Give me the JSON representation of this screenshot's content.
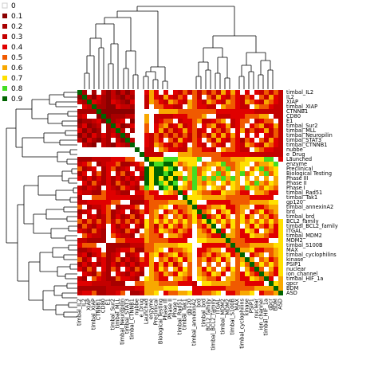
{
  "chart_data": {
    "type": "heatmap",
    "title": "",
    "xlabel": "",
    "ylabel": "",
    "row_labels": [
      "timbal_IL2",
      "IL2",
      "XIAP",
      "timbal_XIAP",
      "CTNNB1",
      "CD80",
      "E1",
      "timbal_Sur2",
      "timbal_MLL",
      "timbal_Neuropilin",
      "timbal_STAT3",
      "timbal_CTNNB1",
      "nubbe",
      "e_Drug",
      "Launched",
      "enzyme",
      "Preclinical",
      "Biological Testing",
      "Phase III",
      "Phase II",
      "Phase I",
      "timbal_Rad51",
      "timbal_Tak1",
      "gp120",
      "timbal_annexinA2",
      "brd",
      "timbal_brd",
      "BCL2_family",
      "timbal_BCL2_family",
      "ITGAL",
      "timbal_MDM2",
      "MDM2",
      "timbal_S100B",
      "MAX",
      "timbal_cyclophilins",
      "kinase",
      "PSIP1",
      "nuclear",
      "ion_channel",
      "timbal_HIF_1a",
      "gpcr",
      "BDM",
      "ASD"
    ],
    "col_labels": [
      "timbal_IL2",
      "IL2",
      "XIAP",
      "timbal_XIAP",
      "CTNNB1",
      "CD80",
      "E1",
      "timbal_Sur2",
      "timbal_MLL",
      "timbal_Neuropilin",
      "timbal_STAT3",
      "timbal_CTNNB1",
      "nubbe",
      "e_Drug",
      "Launched",
      "enzyme",
      "Preclinical",
      "Biological Testing",
      "Phase III",
      "Phase II",
      "Phase I",
      "timbal_Rad51",
      "timbal_Tak1",
      "gp120",
      "timbal_annexinA2",
      "brd",
      "timbal_brd",
      "BCL2_family",
      "timbal_BCL2_family",
      "ITGAL",
      "timbal_MDM2",
      "MDM2",
      "timbal_S100B",
      "MAX",
      "timbal_cyclophilins",
      "kinase",
      "PSIP1",
      "nuclear",
      "ion_channel",
      "timbal_HIF_1a",
      "gpcr",
      "BDM",
      "ASD"
    ],
    "legend": {
      "levels": [
        {
          "label": "0",
          "color": "#ffffff"
        },
        {
          "label": "0.1",
          "color": "#8b0000"
        },
        {
          "label": "0.2",
          "color": "#a80000"
        },
        {
          "label": "0.3",
          "color": "#c40000"
        },
        {
          "label": "0.4",
          "color": "#e00000"
        },
        {
          "label": "0.5",
          "color": "#f05a00"
        },
        {
          "label": "0.6",
          "color": "#f8a800"
        },
        {
          "label": "0.7",
          "color": "#ffe000"
        },
        {
          "label": "0.8",
          "color": "#44dd22"
        },
        {
          "label": "0.9",
          "color": "#006400"
        }
      ]
    },
    "blocks": [
      {
        "rows": [
          14,
          20
        ],
        "cols": [
          14,
          20
        ],
        "value": 0.8
      },
      {
        "rows": [
          21,
          42
        ],
        "cols": [
          21,
          42
        ],
        "value": 0.5
      },
      {
        "rows": [
          0,
          11
        ],
        "cols": [
          0,
          11
        ],
        "value": 0.2
      },
      {
        "rows": [
          14,
          20
        ],
        "cols": [
          21,
          42
        ],
        "value": 0.6
      },
      {
        "rows": [
          21,
          42
        ],
        "cols": [
          14,
          20
        ],
        "value": 0.5
      },
      {
        "rows": [
          0,
          13
        ],
        "cols": [
          14,
          42
        ],
        "value": 0.4
      },
      {
        "rows": [
          14,
          42
        ],
        "cols": [
          0,
          13
        ],
        "value": 0.3
      }
    ],
    "diagonal_value": 0.9,
    "grid": false,
    "legend_position": "top-left",
    "dendrograms": [
      "top",
      "left"
    ]
  }
}
